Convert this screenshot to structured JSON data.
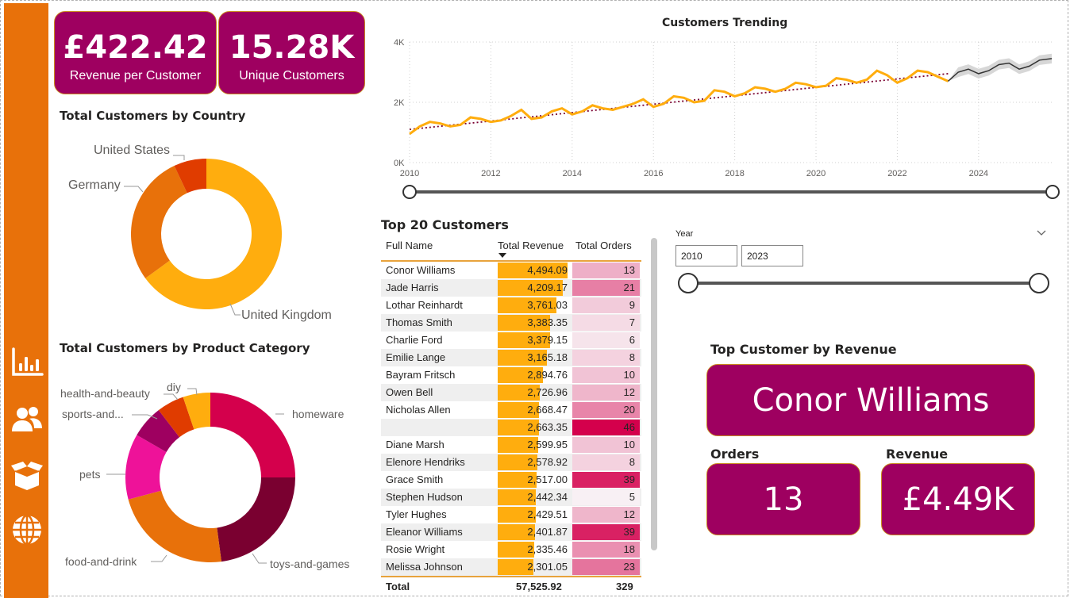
{
  "colors": {
    "accent": "#9e0060",
    "sidebar": "#e8710a",
    "gold": "#ffad0e"
  },
  "nav": [
    "bar-chart-icon",
    "users-icon",
    "box-icon",
    "globe-icon"
  ],
  "kpis": {
    "revenue_per_customer": {
      "value": "£422.42",
      "label": "Revenue per Customer"
    },
    "unique_customers": {
      "value": "15.28K",
      "label": "Unique Customers"
    }
  },
  "country_chart": {
    "title": "Total Customers by Country",
    "slices": [
      {
        "name": "United Kingdom",
        "value": 65,
        "color": "#ffad0e"
      },
      {
        "name": "Germany",
        "value": 28,
        "color": "#e8710a"
      },
      {
        "name": "United States",
        "value": 7,
        "color": "#e03c00"
      }
    ]
  },
  "category_chart": {
    "title": "Total Customers by Product Category",
    "slices": [
      {
        "name": "homeware",
        "value": 24,
        "color": "#d4004c"
      },
      {
        "name": "toys-and-games",
        "value": 22,
        "color": "#7a0030"
      },
      {
        "name": "food-and-drink",
        "value": 22,
        "color": "#e8710a"
      },
      {
        "name": "pets",
        "value": 12,
        "color": "#ee1299"
      },
      {
        "name": "sports-and...",
        "value": 6,
        "color": "#9e0060"
      },
      {
        "name": "diy",
        "value": 5,
        "color": "#e03c00"
      },
      {
        "name": "health-and-beauty",
        "value": 5,
        "color": "#ffad0e"
      }
    ]
  },
  "trend_chart": {
    "title": "Customers Trending",
    "y_ticks": [
      "0K",
      "2K",
      "4K"
    ],
    "x_ticks": [
      "2010",
      "2012",
      "2014",
      "2016",
      "2018",
      "2020",
      "2022",
      "2024"
    ]
  },
  "chart_data": {
    "type": "line",
    "title": "Customers Trending",
    "xlim": [
      2010,
      2025.8
    ],
    "ylim": [
      0,
      4000
    ],
    "series": [
      {
        "x": [
          2010.0,
          2010.25,
          2010.5,
          2010.75,
          2011.0,
          2011.25,
          2011.5,
          2011.75,
          2012.0,
          2012.25,
          2012.5,
          2012.75,
          2013.0,
          2013.25,
          2013.5,
          2013.75,
          2014.0,
          2014.25,
          2014.5,
          2014.75,
          2015.0,
          2015.25,
          2015.5,
          2015.75,
          2016.0,
          2016.25,
          2016.5,
          2016.75,
          2017.0,
          2017.25,
          2017.5,
          2017.75,
          2018.0,
          2018.25,
          2018.5,
          2018.75,
          2019.0,
          2019.25,
          2019.5,
          2019.75,
          2020.0,
          2020.25,
          2020.5,
          2020.75,
          2021.0,
          2021.25,
          2021.5,
          2021.75,
          2022.0,
          2022.25,
          2022.5,
          2022.75,
          2023.0,
          2023.25
        ],
        "values": [
          950,
          1200,
          1350,
          1300,
          1200,
          1250,
          1500,
          1450,
          1350,
          1400,
          1550,
          1750,
          1450,
          1500,
          1700,
          1800,
          1600,
          1700,
          1900,
          1800,
          1750,
          1850,
          1950,
          2100,
          1850,
          1950,
          2200,
          2150,
          2000,
          2050,
          2400,
          2350,
          2200,
          2300,
          2500,
          2450,
          2350,
          2450,
          2650,
          2600,
          2500,
          2550,
          2800,
          2750,
          2650,
          2750,
          3050,
          2900,
          2650,
          2800,
          3050,
          3000,
          2850,
          2700
        ]
      },
      {
        "name": "forecast",
        "x": [
          2023.25,
          2023.5,
          2023.75,
          2024.0,
          2024.25,
          2024.5,
          2024.75,
          2025.0,
          2025.25,
          2025.5,
          2025.8
        ],
        "values": [
          2700,
          3000,
          3100,
          2950,
          3050,
          3250,
          3300,
          3100,
          3200,
          3400,
          3450
        ]
      },
      {
        "name": "trend",
        "x": [
          2010,
          2023.25
        ],
        "values": [
          1100,
          2950
        ]
      }
    ]
  },
  "trend_slider": {},
  "table": {
    "title": "Top 20 Customers",
    "columns": [
      "Full Name",
      "Total Revenue",
      "Total Orders"
    ],
    "max_revenue": 4494.09,
    "rows": [
      {
        "name": "Conor Williams",
        "revenue": "4,494.09",
        "rev": 4494.09,
        "orders": "13",
        "ord": 13
      },
      {
        "name": "Jade Harris",
        "revenue": "4,209.17",
        "rev": 4209.17,
        "orders": "21",
        "ord": 21
      },
      {
        "name": "Lothar Reinhardt",
        "revenue": "3,761.03",
        "rev": 3761.03,
        "orders": "9",
        "ord": 9
      },
      {
        "name": "Thomas Smith",
        "revenue": "3,383.35",
        "rev": 3383.35,
        "orders": "7",
        "ord": 7
      },
      {
        "name": "Charlie Ford",
        "revenue": "3,379.15",
        "rev": 3379.15,
        "orders": "6",
        "ord": 6
      },
      {
        "name": "Emilie Lange",
        "revenue": "3,165.18",
        "rev": 3165.18,
        "orders": "8",
        "ord": 8
      },
      {
        "name": "Bayram Fritsch",
        "revenue": "2,894.76",
        "rev": 2894.76,
        "orders": "10",
        "ord": 10
      },
      {
        "name": "Owen Bell",
        "revenue": "2,726.96",
        "rev": 2726.96,
        "orders": "12",
        "ord": 12
      },
      {
        "name": "Nicholas Allen",
        "revenue": "2,668.47",
        "rev": 2668.47,
        "orders": "20",
        "ord": 20
      },
      {
        "name": "",
        "revenue": "2,663.35",
        "rev": 2663.35,
        "orders": "46",
        "ord": 46
      },
      {
        "name": "Diane Marsh",
        "revenue": "2,599.95",
        "rev": 2599.95,
        "orders": "10",
        "ord": 10
      },
      {
        "name": "Elenore Hendriks",
        "revenue": "2,578.92",
        "rev": 2578.92,
        "orders": "8",
        "ord": 8
      },
      {
        "name": "Grace Smith",
        "revenue": "2,517.00",
        "rev": 2517.0,
        "orders": "39",
        "ord": 39
      },
      {
        "name": "Stephen Hudson",
        "revenue": "2,442.34",
        "rev": 2442.34,
        "orders": "5",
        "ord": 5
      },
      {
        "name": "Tyler Hughes",
        "revenue": "2,429.51",
        "rev": 2429.51,
        "orders": "12",
        "ord": 12
      },
      {
        "name": "Eleanor Williams",
        "revenue": "2,401.87",
        "rev": 2401.87,
        "orders": "39",
        "ord": 39
      },
      {
        "name": "Rosie Wright",
        "revenue": "2,335.46",
        "rev": 2335.46,
        "orders": "18",
        "ord": 18
      },
      {
        "name": "Melissa Johnson",
        "revenue": "2,301.05",
        "rev": 2301.05,
        "orders": "23",
        "ord": 23
      }
    ],
    "total_label": "Total",
    "total_revenue": "57,525.92",
    "total_orders": "329"
  },
  "year_filter": {
    "label": "Year",
    "from": "2010",
    "to": "2023"
  },
  "top_customer": {
    "title": "Top Customer by Revenue",
    "name": "Conor Williams",
    "orders_label": "Orders",
    "orders_value": "13",
    "revenue_label": "Revenue",
    "revenue_value": "£4.49K"
  }
}
